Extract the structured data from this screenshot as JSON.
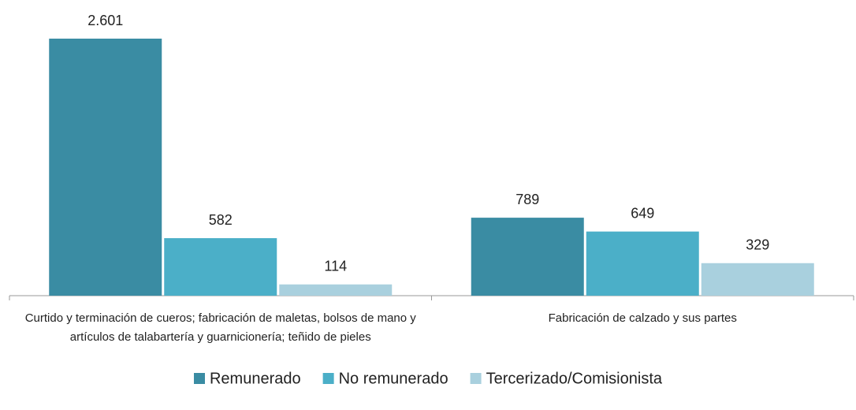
{
  "chart_data": {
    "type": "bar",
    "categories": [
      "Curtido y terminación de cueros; fabricación de maletas, bolsos de mano y artículos de talabartería y guarnicionería; teñido de pieles",
      "Fabricación de calzado y sus partes"
    ],
    "series": [
      {
        "name": "Remunerado",
        "color": "#3a8ca3",
        "values": [
          2601,
          789
        ],
        "value_labels": [
          "2.601",
          "789"
        ]
      },
      {
        "name": "No remunerado",
        "color": "#4bafc8",
        "values": [
          582,
          649
        ],
        "value_labels": [
          "582",
          "649"
        ]
      },
      {
        "name": "Tercerizado/Comisionista",
        "color": "#a9d0de",
        "values": [
          114,
          329
        ],
        "value_labels": [
          "114",
          "329"
        ]
      }
    ],
    "legend": "bottom"
  }
}
